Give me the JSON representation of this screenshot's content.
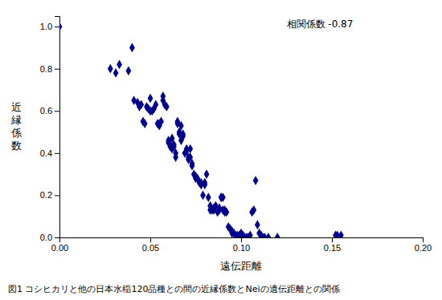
{
  "chart_data": {
    "type": "scatter",
    "xlabel": "遠伝距離",
    "ylabel": "近\n縁\n係\n数",
    "annotation": "相関係数 -0.87",
    "caption": "図1 コシヒカリと他の日本水稲120品種との間の近縁係数とNeiの遺伝距離との関係",
    "xlim": [
      0,
      0.2
    ],
    "ylim": [
      0,
      1.05
    ],
    "xticks": [
      {
        "value": 0,
        "label": "0.00"
      },
      0.05,
      {
        "value": 0.1,
        "label": "0.10"
      },
      0.15,
      {
        "value": 0.2,
        "label": "0.20"
      }
    ],
    "yticks": [
      {
        "value": 0,
        "label": "0.0"
      },
      0.2,
      0.4,
      0.6,
      0.8,
      {
        "value": 1.0,
        "label": "1.0"
      }
    ],
    "color": "#00008B",
    "marker": "diamond",
    "x": [
      0.0,
      0.028,
      0.031,
      0.033,
      0.038,
      0.04,
      0.041,
      0.043,
      0.044,
      0.045,
      0.046,
      0.047,
      0.048,
      0.049,
      0.05,
      0.05,
      0.051,
      0.052,
      0.053,
      0.054,
      0.055,
      0.055,
      0.056,
      0.057,
      0.057,
      0.058,
      0.059,
      0.06,
      0.06,
      0.061,
      0.061,
      0.062,
      0.062,
      0.063,
      0.063,
      0.064,
      0.064,
      0.065,
      0.065,
      0.066,
      0.066,
      0.067,
      0.067,
      0.068,
      0.068,
      0.069,
      0.07,
      0.07,
      0.071,
      0.071,
      0.072,
      0.072,
      0.073,
      0.073,
      0.074,
      0.075,
      0.075,
      0.076,
      0.077,
      0.078,
      0.078,
      0.079,
      0.08,
      0.08,
      0.081,
      0.082,
      0.083,
      0.083,
      0.084,
      0.085,
      0.085,
      0.086,
      0.087,
      0.088,
      0.088,
      0.089,
      0.089,
      0.09,
      0.09,
      0.091,
      0.091,
      0.092,
      0.093,
      0.094,
      0.095,
      0.095,
      0.096,
      0.097,
      0.098,
      0.099,
      0.1,
      0.1,
      0.101,
      0.102,
      0.103,
      0.104,
      0.105,
      0.106,
      0.107,
      0.108,
      0.109,
      0.11,
      0.111,
      0.112,
      0.113,
      0.115,
      0.12,
      0.152,
      0.153,
      0.155
    ],
    "values": [
      1.0,
      0.8,
      0.78,
      0.82,
      0.79,
      0.9,
      0.65,
      0.64,
      0.62,
      0.63,
      0.55,
      0.54,
      0.62,
      0.61,
      0.66,
      0.6,
      0.6,
      0.61,
      0.63,
      0.54,
      0.54,
      0.53,
      0.55,
      0.65,
      0.67,
      0.63,
      0.62,
      0.46,
      0.45,
      0.43,
      0.44,
      0.42,
      0.47,
      0.44,
      0.43,
      0.38,
      0.4,
      0.55,
      0.54,
      0.5,
      0.49,
      0.46,
      0.53,
      0.49,
      0.48,
      0.4,
      0.41,
      0.42,
      0.38,
      0.37,
      0.42,
      0.38,
      0.35,
      0.34,
      0.3,
      0.28,
      0.29,
      0.28,
      0.26,
      0.25,
      0.26,
      0.2,
      0.25,
      0.26,
      0.3,
      0.19,
      0.15,
      0.13,
      0.13,
      0.13,
      0.14,
      0.15,
      0.12,
      0.13,
      0.14,
      0.19,
      0.19,
      0.19,
      0.13,
      0.12,
      0.13,
      0.12,
      0.05,
      0.04,
      0.03,
      0.02,
      0.02,
      0.01,
      0.01,
      0.01,
      0.02,
      0.01,
      0.01,
      0.0,
      0.0,
      0.0,
      0.01,
      0.12,
      0.13,
      0.27,
      0.06,
      0.02,
      0.01,
      0.0,
      0.0,
      0.0,
      0.0,
      0.01,
      0.01,
      0.01
    ]
  }
}
